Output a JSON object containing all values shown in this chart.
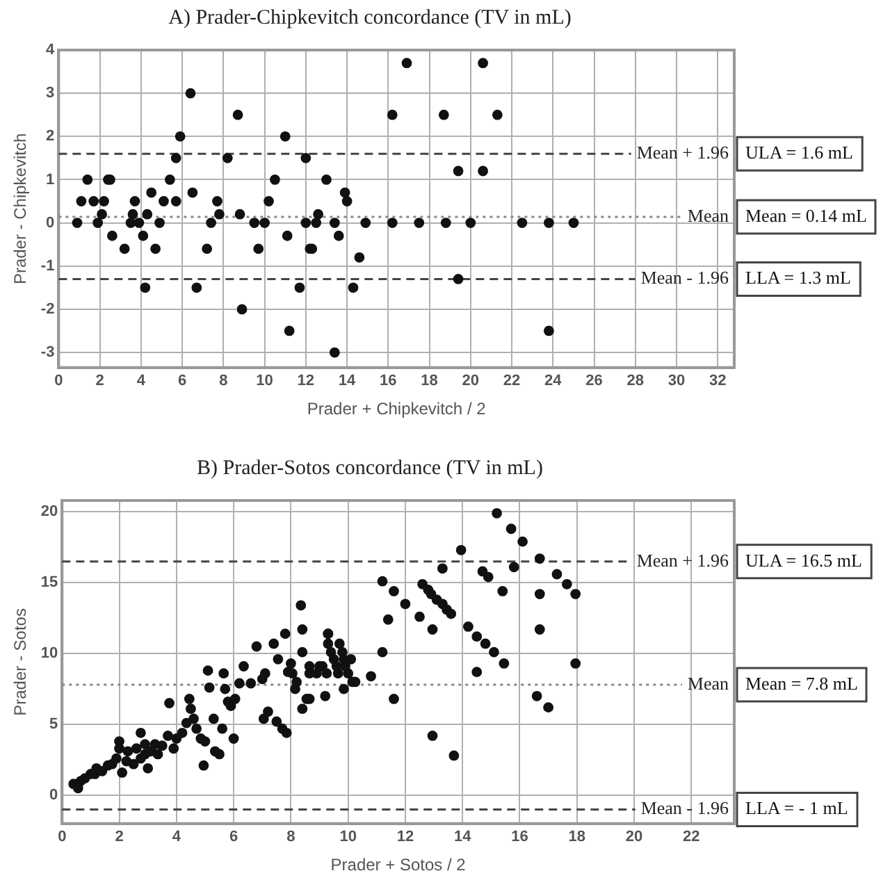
{
  "chart_data": [
    {
      "type": "scatter",
      "title": "A) Prader-Chipkevitch concordance (TV in mL)",
      "xlabel": "Prader + Chipkevitch / 2",
      "ylabel": "Prader - Chipkevitch",
      "color": "#111111",
      "marker": "circle",
      "grid": true,
      "x": [
        0.9,
        1.1,
        1.4,
        1.7,
        1.9,
        2.1,
        2.2,
        2.4,
        2.5,
        2.6,
        3.2,
        3.5,
        3.6,
        3.7,
        3.9,
        4.1,
        4.2,
        4.3,
        4.5,
        4.7,
        4.9,
        5.1,
        5.4,
        5.7,
        5.7,
        5.9,
        6.4,
        6.5,
        6.7,
        7.2,
        7.4,
        7.7,
        7.8,
        8.2,
        8.7,
        8.8,
        8.9,
        9.5,
        9.7,
        10.0,
        10.2,
        10.5,
        11.0,
        11.1,
        11.2,
        11.7,
        12.0,
        12.0,
        12.2,
        12.3,
        12.5,
        12.6,
        13.0,
        13.4,
        13.4,
        13.6,
        13.9,
        14.0,
        14.6,
        14.3,
        14.9,
        16.2,
        16.2,
        16.9,
        17.5,
        18.7,
        18.8,
        19.4,
        19.4,
        20.0,
        20.6,
        20.6,
        21.3,
        22.5,
        23.8,
        23.8,
        25.0
      ],
      "values": [
        0,
        0.5,
        1.0,
        0.5,
        0,
        0.2,
        0.5,
        1.0,
        1.0,
        -0.3,
        -0.6,
        0,
        0.2,
        0.5,
        0,
        -0.3,
        -1.5,
        0.2,
        0.7,
        -0.6,
        0,
        0.5,
        1.0,
        0.5,
        1.5,
        2.0,
        3.0,
        0.7,
        -1.5,
        -0.6,
        0,
        0.5,
        0.2,
        1.5,
        2.5,
        0.2,
        -2.0,
        0,
        -0.6,
        0,
        0.5,
        1.0,
        2.0,
        -0.3,
        -2.5,
        -1.5,
        1.5,
        0,
        -0.6,
        -0.6,
        0,
        0.2,
        1.0,
        0,
        -3.0,
        -0.3,
        0.7,
        0.5,
        -0.8,
        -1.5,
        0,
        0,
        2.5,
        3.7,
        0,
        2.5,
        0,
        1.2,
        -1.3,
        0,
        3.7,
        1.2,
        2.5,
        0,
        0,
        -2.5,
        0
      ],
      "xlim": [
        0,
        32.8
      ],
      "xticks": [
        0,
        2,
        4,
        6,
        8,
        10,
        12,
        14,
        16,
        18,
        20,
        22,
        24,
        26,
        28,
        30,
        32
      ],
      "ylim": [
        -3.35,
        4
      ],
      "yticks": [
        -3,
        -2,
        -1,
        0,
        1,
        2,
        3,
        4
      ],
      "ref_lines": [
        {
          "axis": "y",
          "value": 1.6,
          "label": "Mean + 1.96",
          "color": "#444444",
          "line_style": "dashed"
        },
        {
          "axis": "y",
          "value": 0.14,
          "label": "Mean",
          "color": "#888888",
          "line_style": "dotted"
        },
        {
          "axis": "y",
          "value": -1.3,
          "label": "Mean - 1.96",
          "color": "#444444",
          "line_style": "dashed"
        }
      ],
      "annotations": [
        "ULA = 1.6 mL",
        "Mean = 0.14 mL",
        "LLA = 1.3 mL"
      ]
    },
    {
      "type": "scatter",
      "title": "B) Prader-Sotos concordance (TV in mL)",
      "xlabel": "Prader + Sotos / 2",
      "ylabel": "Prader - Sotos",
      "color": "#111111",
      "marker": "circle",
      "grid": true,
      "x": [
        0.4,
        0.56,
        0.65,
        0.8,
        1.0,
        1.15,
        1.2,
        1.4,
        1.6,
        1.75,
        1.9,
        2.0,
        2.0,
        2.1,
        2.25,
        2.3,
        2.5,
        2.6,
        2.75,
        2.75,
        2.9,
        2.9,
        3.0,
        3.1,
        3.25,
        3.35,
        3.5,
        3.7,
        3.75,
        3.9,
        4.0,
        4.2,
        4.35,
        4.45,
        4.5,
        4.6,
        4.7,
        4.85,
        4.95,
        5.0,
        5.1,
        5.15,
        5.3,
        5.35,
        5.5,
        5.6,
        5.65,
        5.7,
        5.8,
        5.9,
        6.0,
        6.05,
        6.35,
        6.2,
        6.6,
        6.8,
        7.0,
        7.05,
        7.1,
        7.2,
        7.4,
        7.5,
        7.55,
        7.7,
        7.8,
        7.85,
        7.9,
        8.0,
        8.05,
        8.15,
        8.2,
        8.35,
        8.4,
        8.4,
        8.4,
        8.55,
        8.65,
        9.0,
        9.2,
        9.3,
        9.5,
        8.65,
        8.65,
        8.9,
        9.1,
        9.25,
        9.3,
        9.3,
        9.4,
        9.6,
        9.65,
        9.7,
        9.8,
        9.85,
        9.9,
        10.0,
        10.1,
        10.15,
        10.25,
        9.85,
        10.8,
        11.2,
        11.2,
        11.4,
        11.6,
        11.6,
        12.0,
        12.5,
        12.6,
        12.8,
        12.95,
        12.95,
        12.9,
        13.1,
        13.3,
        13.3,
        13.45,
        13.6,
        13.7,
        13.95,
        14.2,
        14.5,
        14.5,
        14.7,
        14.8,
        14.9,
        15.1,
        15.2,
        15.4,
        15.45,
        15.7,
        15.8,
        16.1,
        16.6,
        16.7,
        16.7,
        16.7,
        17.0,
        17.3,
        17.65,
        17.95,
        17.95
      ],
      "values": [
        0.8,
        0.5,
        1.0,
        1.2,
        1.5,
        1.5,
        1.9,
        1.7,
        2.1,
        2.2,
        2.6,
        3.3,
        3.8,
        1.6,
        2.4,
        3.1,
        2.2,
        3.3,
        4.4,
        2.6,
        3.6,
        2.9,
        1.9,
        3.1,
        3.6,
        2.9,
        3.5,
        4.2,
        6.5,
        3.3,
        4.0,
        4.4,
        5.1,
        6.8,
        6.1,
        5.4,
        4.7,
        4.0,
        2.1,
        3.8,
        8.8,
        7.6,
        5.4,
        3.1,
        2.9,
        4.7,
        8.6,
        7.5,
        6.6,
        6.3,
        4.0,
        6.8,
        9.1,
        7.9,
        7.9,
        10.5,
        8.2,
        5.4,
        8.6,
        5.9,
        10.7,
        5.2,
        9.6,
        4.7,
        11.4,
        4.4,
        8.7,
        9.3,
        8.6,
        7.5,
        8.0,
        13.4,
        11.7,
        6.1,
        10.1,
        6.8,
        8.6,
        9.1,
        7.0,
        11.4,
        9.6,
        9.1,
        6.8,
        8.6,
        9.1,
        8.6,
        11.4,
        10.7,
        10.1,
        9.1,
        8.6,
        10.7,
        10.1,
        9.6,
        9.1,
        8.6,
        9.6,
        8.0,
        8.0,
        7.5,
        8.4,
        15.1,
        10.1,
        12.4,
        14.4,
        6.8,
        13.5,
        12.6,
        14.9,
        14.5,
        11.7,
        4.2,
        14.2,
        13.8,
        16.0,
        13.5,
        13.1,
        12.8,
        2.8,
        17.3,
        11.9,
        11.2,
        8.7,
        15.8,
        10.7,
        15.4,
        10.1,
        19.9,
        14.4,
        9.3,
        18.8,
        16.1,
        17.9,
        7.0,
        16.7,
        14.2,
        11.7,
        6.2,
        15.6,
        14.9,
        9.3,
        14.2
      ],
      "xlim": [
        0,
        23.5
      ],
      "xticks": [
        0,
        2,
        4,
        6,
        8,
        10,
        12,
        14,
        16,
        18,
        20,
        22
      ],
      "ylim": [
        -2,
        20.8
      ],
      "yticks": [
        0,
        5,
        10,
        15,
        20
      ],
      "ref_lines": [
        {
          "axis": "y",
          "value": 16.5,
          "label": "Mean + 1.96",
          "color": "#444444",
          "line_style": "dashed"
        },
        {
          "axis": "y",
          "value": 7.8,
          "label": "Mean",
          "color": "#888888",
          "line_style": "dotted"
        },
        {
          "axis": "y",
          "value": -1,
          "label": "Mean - 1.96",
          "color": "#444444",
          "line_style": "dashed"
        }
      ],
      "annotations": [
        "ULA = 16.5 mL",
        "Mean = 7.8 mL",
        "LLA = - 1 mL"
      ]
    }
  ]
}
